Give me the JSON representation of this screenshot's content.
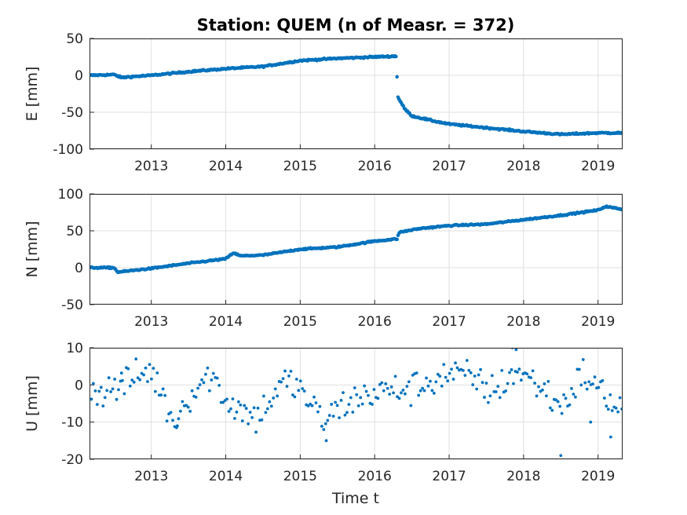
{
  "chart_data": {
    "type": "scatter",
    "title": "Station: QUEM (n of Measr. = 372)",
    "xlabel": "Time t",
    "xlim": [
      2012.17,
      2019.33
    ],
    "xticks": [
      "2013",
      "2014",
      "2015",
      "2016",
      "2017",
      "2018",
      "2019"
    ],
    "grid": true,
    "marker_color": "#0072BD",
    "panels": [
      {
        "ylabel": "E [mm]",
        "ylim": [
          -100,
          50
        ],
        "yticks": [
          "50",
          "0",
          "-50",
          "-100"
        ],
        "anchors": [
          [
            2012.17,
            0
          ],
          [
            2012.5,
            1
          ],
          [
            2012.6,
            -3
          ],
          [
            2012.7,
            -2
          ],
          [
            2013.0,
            0
          ],
          [
            2013.5,
            5
          ],
          [
            2014.0,
            9
          ],
          [
            2014.5,
            12
          ],
          [
            2015.0,
            20
          ],
          [
            2015.5,
            23
          ],
          [
            2016.0,
            25
          ],
          [
            2016.29,
            26
          ],
          [
            2016.31,
            -29
          ],
          [
            2016.4,
            -45
          ],
          [
            2016.5,
            -55
          ],
          [
            2016.8,
            -62
          ],
          [
            2017.0,
            -66
          ],
          [
            2017.5,
            -71
          ],
          [
            2018.0,
            -76
          ],
          [
            2018.5,
            -80
          ],
          [
            2019.0,
            -78
          ],
          [
            2019.33,
            -78
          ]
        ],
        "noise": 1.6,
        "outliers": []
      },
      {
        "ylabel": "N [mm]",
        "ylim": [
          -50,
          100
        ],
        "yticks": [
          "100",
          "50",
          "0",
          "-50"
        ],
        "anchors": [
          [
            2012.17,
            0
          ],
          [
            2012.5,
            0
          ],
          [
            2012.55,
            -6
          ],
          [
            2013.0,
            -1
          ],
          [
            2013.5,
            6
          ],
          [
            2014.0,
            12
          ],
          [
            2014.1,
            20
          ],
          [
            2014.2,
            16
          ],
          [
            2014.5,
            17
          ],
          [
            2015.0,
            25
          ],
          [
            2015.5,
            28
          ],
          [
            2016.0,
            36
          ],
          [
            2016.3,
            39
          ],
          [
            2016.33,
            48
          ],
          [
            2016.6,
            53
          ],
          [
            2017.0,
            57
          ],
          [
            2017.5,
            59
          ],
          [
            2018.0,
            65
          ],
          [
            2018.5,
            71
          ],
          [
            2019.0,
            78
          ],
          [
            2019.1,
            83
          ],
          [
            2019.33,
            79
          ]
        ],
        "noise": 1.4,
        "outliers": []
      },
      {
        "ylabel": "U [mm]",
        "ylim": [
          -20,
          10
        ],
        "yticks": [
          "10",
          "0",
          "-10",
          "-20"
        ],
        "anchors": [
          [
            2012.17,
            -2
          ],
          [
            2012.5,
            -1
          ],
          [
            2013.0,
            4
          ],
          [
            2013.3,
            -10
          ],
          [
            2013.5,
            -3
          ],
          [
            2013.8,
            3
          ],
          [
            2014.0,
            -4
          ],
          [
            2014.4,
            -9
          ],
          [
            2014.8,
            1
          ],
          [
            2015.0,
            -1
          ],
          [
            2015.3,
            -10
          ],
          [
            2015.6,
            -5
          ],
          [
            2016.0,
            -2
          ],
          [
            2016.5,
            -1
          ],
          [
            2017.0,
            3
          ],
          [
            2017.3,
            2
          ],
          [
            2017.6,
            -2
          ],
          [
            2017.9,
            4
          ],
          [
            2018.2,
            0
          ],
          [
            2018.5,
            -6
          ],
          [
            2018.8,
            3
          ],
          [
            2019.1,
            -3
          ],
          [
            2019.33,
            -7
          ]
        ],
        "noise": 3.2,
        "outliers": [
          [
            2018.5,
            -19
          ],
          [
            2018.9,
            -10
          ],
          [
            2019.17,
            -14
          ],
          [
            2017.9,
            9.5
          ],
          [
            2017.85,
            10
          ],
          [
            2015.35,
            -15
          ],
          [
            2012.6,
            3.2
          ],
          [
            2013.35,
            -11
          ]
        ]
      }
    ]
  }
}
